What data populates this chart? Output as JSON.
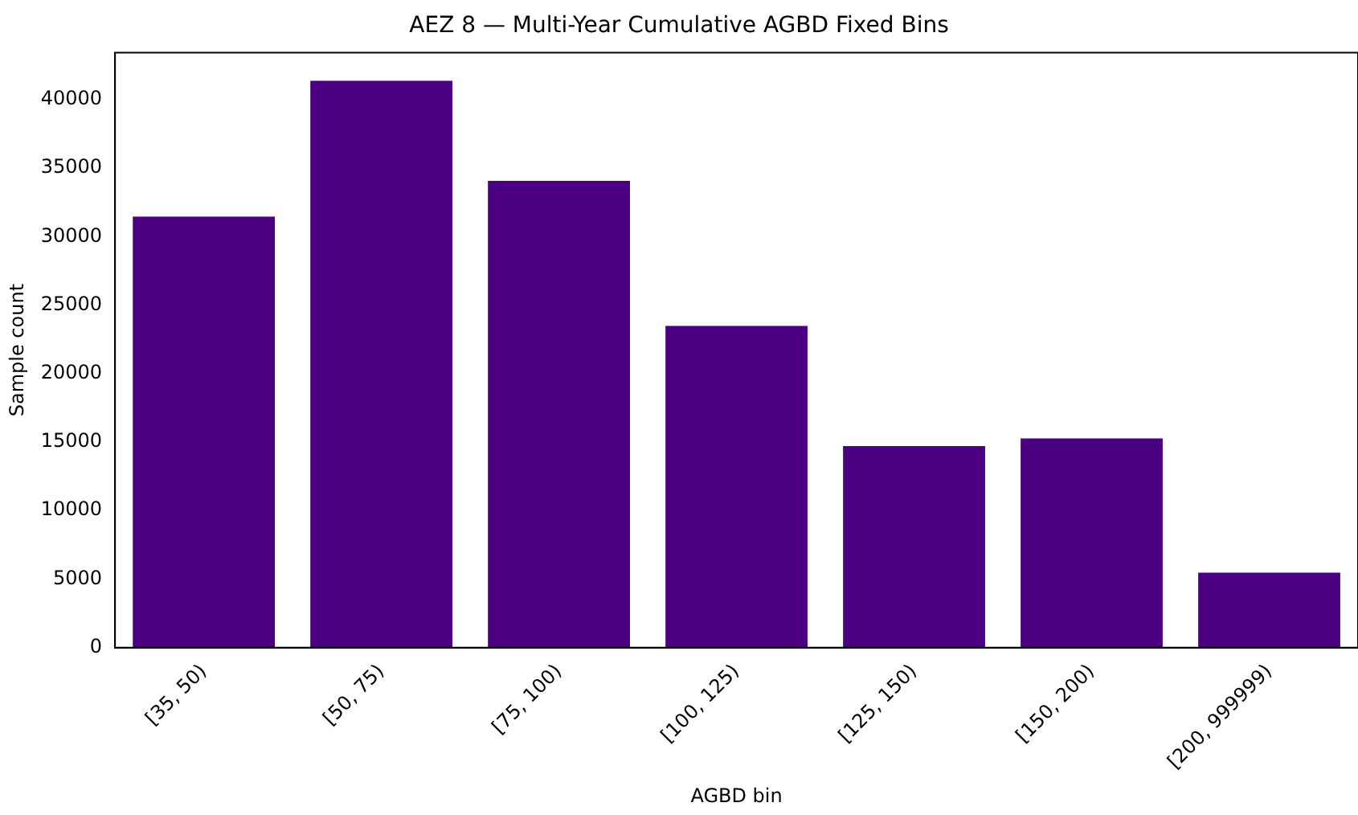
{
  "chart_data": {
    "type": "bar",
    "title": "AEZ 8 — Multi-Year Cumulative AGBD Fixed Bins",
    "xlabel": "AGBD bin",
    "ylabel": "Sample count",
    "categories": [
      "[35, 50)",
      "[50, 75)",
      "[75, 100)",
      "[100, 125)",
      "[125, 150)",
      "[150, 200)",
      "[200, 999999)"
    ],
    "values": [
      31450,
      41370,
      34070,
      23480,
      14700,
      15270,
      5470
    ],
    "color": "#4b0082",
    "ylim": [
      0,
      43420
    ],
    "yticks": [
      0,
      5000,
      10000,
      15000,
      20000,
      25000,
      30000,
      35000,
      40000
    ],
    "grid": false,
    "legend": false
  }
}
